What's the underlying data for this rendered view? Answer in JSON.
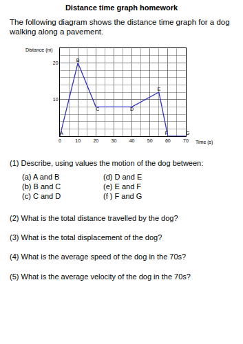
{
  "title": "Distance time graph homework",
  "intro": "The following diagram shows the distance time graph for a dog walking along a pavement.",
  "chart_data": {
    "type": "line",
    "x": [
      0,
      10,
      20,
      40,
      55,
      60,
      70
    ],
    "values": [
      0,
      20,
      8,
      8,
      12,
      0,
      0
    ],
    "point_labels": [
      "A",
      "B",
      "C",
      "D",
      "E",
      "F",
      "G"
    ],
    "x_label": "Time (s)",
    "y_label": "Distance (m)",
    "xlim": [
      0,
      70
    ],
    "ylim": [
      0,
      24
    ],
    "xticks": [
      0,
      10,
      20,
      30,
      40,
      50,
      60,
      70
    ],
    "yticks": [
      10,
      20
    ],
    "grid": true,
    "color": "#3333cc"
  },
  "questions": [
    {
      "text": "(1) Describe, using values the motion of the dog between:",
      "parts": [
        "(a) A and B",
        "(b) B and C",
        "(c) C and D",
        "(d) D and E",
        "(e) E and F",
        "(f ) F and G"
      ]
    },
    {
      "text": "(2) What is the total distance travelled by the dog?"
    },
    {
      "text": "(3) What is the total displacement of the dog?"
    },
    {
      "text": "(4) What is the average speed of the dog in the 70s?"
    },
    {
      "text": "(5) What is the average velocity of the dog in the 70s?"
    }
  ]
}
